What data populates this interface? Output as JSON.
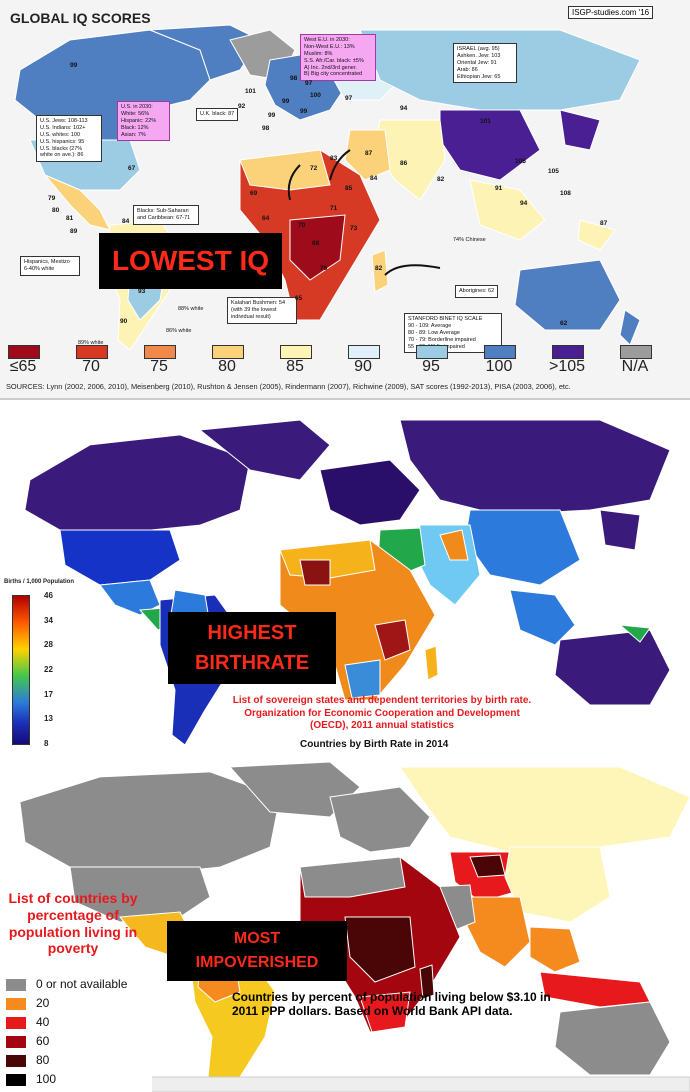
{
  "panel1": {
    "title": "GLOBAL IQ SCORES",
    "credit": "ISGP-studies.com '16",
    "banner": "LOWEST IQ",
    "legend": [
      {
        "label": "≤65",
        "color": "#9e0c1c"
      },
      {
        "label": "70",
        "color": "#d63a25"
      },
      {
        "label": "75",
        "color": "#f08a4a"
      },
      {
        "label": "80",
        "color": "#fbd27a"
      },
      {
        "label": "85",
        "color": "#fdf3b4"
      },
      {
        "label": "90",
        "color": "#dff0f6"
      },
      {
        "label": "95",
        "color": "#9ccbe4"
      },
      {
        "label": "100",
        "color": "#4f7fc0"
      },
      {
        "label": ">105",
        "color": "#4b1f94"
      },
      {
        "label": "N/A",
        "color": "#9c9c9c"
      }
    ],
    "sources": "SOURCES: Lynn (2002, 2006, 2010), Meisenberg (2010), Rushton & Jensen (2005), Rindermann (2007), Richwine (2009), SAT scores (1992-2013), PISA (2003, 2006), etc.",
    "boxes": {
      "us_groups": [
        "U.S. Jews: 108-113",
        "U.S. Indians: 102+",
        "U.S. whites: 100",
        "U.S. hispanics: 95",
        "U.S. blacks (27%",
        "white on ave.): 86"
      ],
      "us_2030": [
        "U.S. in 2030:",
        "White: 56%",
        "Hispanic: 22%",
        "Black: 12%",
        "Asian: 7%"
      ],
      "west_eu": [
        "West E.U. in 2030:",
        "Non-West E.U.: 13%",
        "Muslim: 8%",
        "S.S. Afr./Car. black: ±5%",
        "A) Inc. 2nd/3rd gener.",
        "B) Big city concentrated"
      ],
      "israel": [
        "ISRAEL (avg. 95)",
        "Ashken. Jew: 103",
        "Oriental Jew: 91",
        "Arab: 86",
        "Ethiopian Jew: 65"
      ],
      "uk_black": "U.K. black: 87",
      "blacks_ssa": [
        "Blacks: Sub-Saharan",
        "and Caribbean: 67-71"
      ],
      "hispanics": [
        "Hispanics, Mestizo",
        "6-40% white"
      ],
      "kalahari": [
        "Kalahari Bushmen: 54",
        "(with 39 the lowest",
        "individual result)"
      ],
      "aborigines": "Aborigines: 62",
      "chinese": "74% Chinese",
      "white88": "88% white",
      "white86": "86% white",
      "white89": "89% white",
      "stanford": [
        "STANFORD BINET IQ SCALE",
        "90 - 109:   Average",
        "80 - 89:    Low Average",
        "70 - 79:    Borderline impaired",
        "55 - 69:    Mildly impaired"
      ]
    },
    "values": [
      "99",
      "101",
      "92",
      "98",
      "97",
      "99",
      "99",
      "100",
      "97",
      "94",
      "101",
      "105",
      "105",
      "108",
      "86",
      "91",
      "94",
      "83",
      "87",
      "98",
      "99",
      "93",
      "90",
      "84",
      "82",
      "72",
      "71",
      "68",
      "70",
      "73",
      "76",
      "69",
      "65",
      "64",
      "67",
      "82",
      "79",
      "80",
      "81",
      "89",
      "84",
      "87",
      "62",
      "85"
    ]
  },
  "panel2": {
    "banner_line1": "HIGHEST",
    "banner_line2": "BIRTHRATE",
    "legend_title": "Births / 1,000 Population",
    "ticks": [
      "46",
      "34",
      "28",
      "22",
      "17",
      "13",
      "8"
    ],
    "caption": "List of sovereign states and dependent territories by birth rate. Organization for Economic Cooperation and Development (OECD), 2011 annual statistics",
    "subcaption": "Countries by Birth Rate in 2014"
  },
  "panel3": {
    "side_title": "List of countries by percentage of population living in poverty",
    "banner_line1": "MOST",
    "banner_line2": "IMPOVERISHED",
    "legend": [
      {
        "label": "0 or not available",
        "color": "#8c8c8c"
      },
      {
        "label": "20",
        "color": "#f58a1f"
      },
      {
        "label": "40",
        "color": "#e8191c"
      },
      {
        "label": "60",
        "color": "#a3060e"
      },
      {
        "label": "80",
        "color": "#4a0606"
      },
      {
        "label": "100",
        "color": "#000000"
      }
    ],
    "caption": "Countries by percent of population living below $3.10 in 2011 PPP dollars. Based on World Bank API data."
  }
}
